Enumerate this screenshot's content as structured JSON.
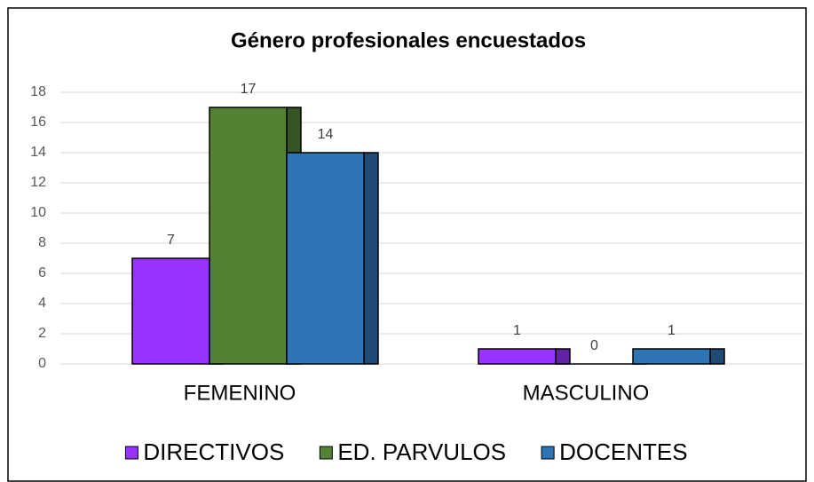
{
  "chart_data": {
    "type": "bar",
    "title": "Género profesionales encuestados",
    "categories": [
      "FEMENINO",
      "MASCULINO"
    ],
    "series": [
      {
        "name": "DIRECTIVOS",
        "color": "#9933ff",
        "values": [
          7,
          1
        ]
      },
      {
        "name": "ED. PARVULOS",
        "color": "#548235",
        "values": [
          17,
          0
        ]
      },
      {
        "name": "DOCENTES",
        "color": "#2e75b6",
        "values": [
          14,
          1
        ]
      }
    ],
    "ylim": [
      0,
      18
    ],
    "yticks": [
      0,
      2,
      4,
      6,
      8,
      10,
      12,
      14,
      16,
      18
    ],
    "grid": true,
    "legend": "bottom"
  }
}
